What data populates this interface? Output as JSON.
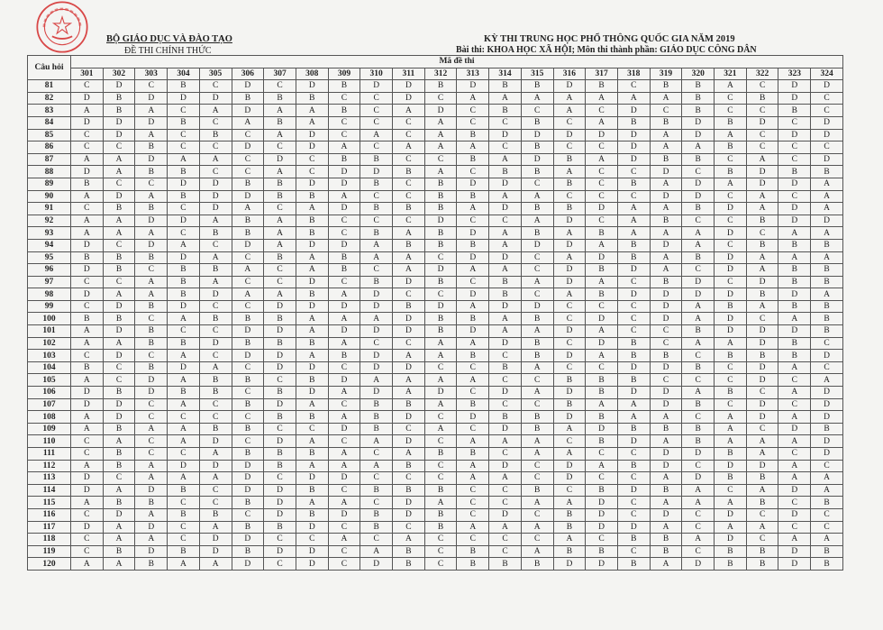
{
  "header": {
    "ministry": "BỘ GIÁO DỤC VÀ ĐÀO TẠO",
    "official": "ĐỀ THI CHÍNH THỨC",
    "exam_title": "KỲ THI TRUNG HỌC PHỔ THÔNG QUỐC GIA NĂM 2019",
    "exam_subject": "Bài thi:  KHOA HỌC XÃ HỘI; Môn thi thành phần: GIÁO DỤC CÔNG DÂN"
  },
  "stamp": {
    "text": "BỘ GIÁO DỤC VÀ ĐÀO TẠO",
    "color": "#d42a2a"
  },
  "table": {
    "question_header": "Câu hỏi",
    "code_header": "Mã đề thi",
    "codes": [
      "301",
      "302",
      "303",
      "304",
      "305",
      "306",
      "307",
      "308",
      "309",
      "310",
      "311",
      "312",
      "313",
      "314",
      "315",
      "316",
      "317",
      "318",
      "319",
      "320",
      "321",
      "322",
      "323",
      "324"
    ],
    "rows": [
      {
        "q": "81",
        "answers": "CDCBCDCDBDDBDBBDBCBBACDD"
      },
      {
        "q": "82",
        "answers": "DBDDDBBBCCDCAAAAAAABCBDC"
      },
      {
        "q": "83",
        "answers": "ABACADAABCADCBCACDCBCCBC"
      },
      {
        "q": "84",
        "answers": "DDDBCABACCCACCBCABBDBDCD"
      },
      {
        "q": "85",
        "answers": "CDACBCADCACABDDDDDADACDD"
      },
      {
        "q": "86",
        "answers": "CCBCCDCDACAAACBCCDAABCCC"
      },
      {
        "q": "87",
        "answers": "AADAACDCBBCCBADBADBBCACD"
      },
      {
        "q": "88",
        "answers": "DABBCCACDDBACBBACCDCBDBB"
      },
      {
        "q": "89",
        "answers": "BCCDDBBDDBCBDDCBCBADADDA"
      },
      {
        "q": "90",
        "answers": "ADABDDBBACCBBAACCCDDCACA"
      },
      {
        "q": "91",
        "answers": "CBBCDACADBBBADBBDAABDADA"
      },
      {
        "q": "92",
        "answers": "AADDABABCCCDCCADCABCCBDD"
      },
      {
        "q": "93",
        "answers": "AAACBBABCBABDABABAAADCAA"
      },
      {
        "q": "94",
        "answers": "DCDACDADDABBBADDABDACBBB"
      },
      {
        "q": "95",
        "answers": "BBBDACBABAACDDCADBABDAAA"
      },
      {
        "q": "96",
        "answers": "DBCBBACABCADAACDBDACDABB"
      },
      {
        "q": "97",
        "answers": "CCABACCDCBDBCBADACBDCDBB"
      },
      {
        "q": "98",
        "answers": "DAABDAABADCCDBCABDDDDBDA"
      },
      {
        "q": "99",
        "answers": "CDBDCCDDDDBDADDCCCDABABB"
      },
      {
        "q": "100",
        "answers": "BBCABBBAAADBBABCDCDADCAB"
      },
      {
        "q": "101",
        "answers": "ADBCCDDADDDBDAADACCBDDDB"
      },
      {
        "q": "102",
        "answers": "AABBDBBBACCAADBCDBCAADBC"
      },
      {
        "q": "103",
        "answers": "CDCACDDABDAABCBDABBCBBBD"
      },
      {
        "q": "104",
        "answers": "BCBDACDDCDDCCBACCDDBCDAC"
      },
      {
        "q": "105",
        "answers": "ACDABBCBDAAAACCBBBCCCDCA"
      },
      {
        "q": "106",
        "answers": "DBDBBCBDADADCDADBDDABCAD"
      },
      {
        "q": "107",
        "answers": "DDCACBDACBBABCCBAADBCDCD"
      },
      {
        "q": "108",
        "answers": "ADCCCCBBABDCDBBDBAACADAD"
      },
      {
        "q": "109",
        "answers": "ABAABBCCDBCACDBADBBBACDB"
      },
      {
        "q": "110",
        "answers": "CACADCDACADCAAACBDABAAAD"
      },
      {
        "q": "111",
        "answers": "CBCCABBBACABBCAACCDDBACD"
      },
      {
        "q": "112",
        "answers": "ABADDDBAAABCADCDABDCDDAC"
      },
      {
        "q": "113",
        "answers": "DCAAADCDDCCCAACDCCADBBAA"
      },
      {
        "q": "114",
        "answers": "DADBCDDBCBBBCCBCBDBACADA"
      },
      {
        "q": "115",
        "answers": "ABBCCBDAACDACCAADCAAABCB"
      },
      {
        "q": "116",
        "answers": "CDABBCDBDBDBCDCBDCDCDCDC"
      },
      {
        "q": "117",
        "answers": "DADCABBDCBCBAAABDDACAACC"
      },
      {
        "q": "118",
        "answers": "CAACDDCCACACCCCACBBADCAA"
      },
      {
        "q": "119",
        "answers": "CBDBDBDDCABCBCABBCBCBBDB"
      },
      {
        "q": "120",
        "answers": "AABAADCDCDBCBBBDDBADBBDB"
      }
    ]
  }
}
